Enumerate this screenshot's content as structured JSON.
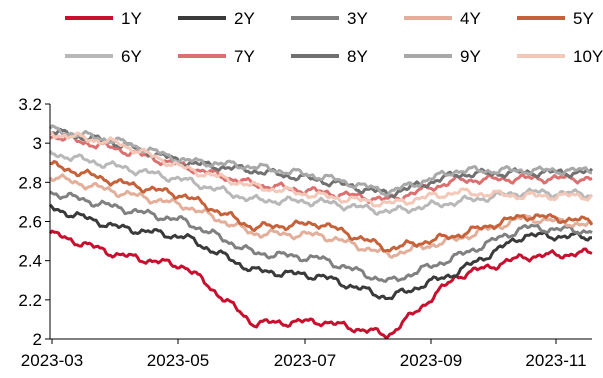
{
  "chart_data": {
    "type": "line",
    "title": "",
    "xlabel": "",
    "ylabel": "",
    "ylim": [
      2.0,
      3.2
    ],
    "yticks": [
      "2",
      "2.2",
      "2.4",
      "2.6",
      "2.8",
      "3",
      "3.2"
    ],
    "xticks": [
      "2023-03",
      "2023-05",
      "2023-07",
      "2023-09",
      "2023-11"
    ],
    "x": [
      "2023-03",
      "2023-04",
      "2023-05",
      "2023-06",
      "2023-07",
      "2023-08",
      "2023-09",
      "2023-10",
      "2023-11"
    ],
    "legend_position": "top",
    "grid": false,
    "series": [
      {
        "name": "1Y",
        "color": "#c8102e",
        "values": [
          2.54,
          2.43,
          2.37,
          2.08,
          2.09,
          2.02,
          2.32,
          2.42,
          2.44
        ]
      },
      {
        "name": "2Y",
        "color": "#3a3a3a",
        "values": [
          2.67,
          2.57,
          2.52,
          2.35,
          2.32,
          2.21,
          2.34,
          2.53,
          2.52
        ]
      },
      {
        "name": "3Y",
        "color": "#808080",
        "values": [
          2.75,
          2.67,
          2.6,
          2.44,
          2.41,
          2.29,
          2.42,
          2.57,
          2.55
        ]
      },
      {
        "name": "4Y",
        "color": "#e3ae9a",
        "values": [
          2.83,
          2.75,
          2.68,
          2.54,
          2.53,
          2.43,
          2.51,
          2.62,
          2.58
        ]
      },
      {
        "name": "5Y",
        "color": "#c6623a",
        "values": [
          2.89,
          2.8,
          2.73,
          2.57,
          2.59,
          2.46,
          2.53,
          2.63,
          2.6
        ]
      },
      {
        "name": "6Y",
        "color": "#b8b8b8",
        "values": [
          2.95,
          2.88,
          2.81,
          2.71,
          2.7,
          2.65,
          2.7,
          2.75,
          2.74
        ]
      },
      {
        "name": "7Y",
        "color": "#dc7070",
        "values": [
          3.04,
          2.97,
          2.88,
          2.79,
          2.75,
          2.71,
          2.81,
          2.82,
          2.82
        ]
      },
      {
        "name": "8Y",
        "color": "#707070",
        "values": [
          3.06,
          3.0,
          2.9,
          2.86,
          2.81,
          2.74,
          2.84,
          2.85,
          2.85
        ]
      },
      {
        "name": "9Y",
        "color": "#a8a8a8",
        "values": [
          3.07,
          3.01,
          2.91,
          2.88,
          2.83,
          2.75,
          2.86,
          2.86,
          2.86
        ]
      },
      {
        "name": "10Y",
        "color": "#f3c8b8",
        "values": [
          3.05,
          3.0,
          2.87,
          2.78,
          2.73,
          2.69,
          2.75,
          2.73,
          2.73
        ]
      }
    ]
  }
}
